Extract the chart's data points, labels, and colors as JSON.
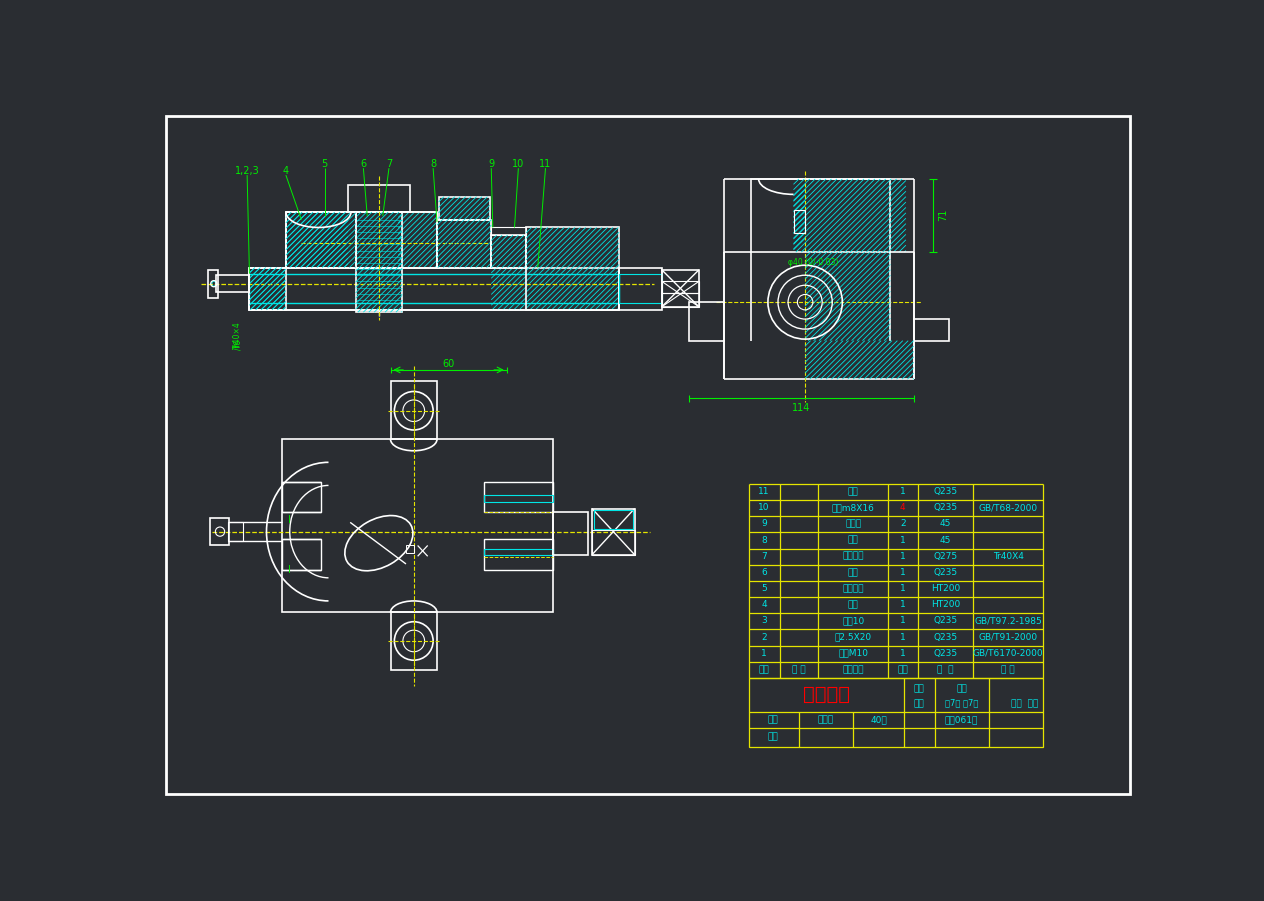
{
  "background_color": "#2a2d32",
  "wc": "#ffffff",
  "cc": "#00e5e5",
  "gc": "#00ee00",
  "yc": "#e5e500",
  "rc": "#ff0000",
  "table_rows": [
    [
      "11",
      "",
      "垫圈",
      "1",
      "Q235",
      ""
    ],
    [
      "10",
      "",
      "螺钉m8X16",
      "4",
      "Q235",
      "GB/T68-2000"
    ],
    [
      "9",
      "",
      "护口板",
      "2",
      "45",
      ""
    ],
    [
      "8",
      "",
      "攀杆",
      "1",
      "45",
      ""
    ],
    [
      "7",
      "",
      "方块螺母",
      "1",
      "Q275",
      "Tr40X4"
    ],
    [
      "6",
      "",
      "螺钉",
      "1",
      "Q235",
      ""
    ],
    [
      "5",
      "",
      "活动钳块",
      "1",
      "HT200",
      ""
    ],
    [
      "4",
      "",
      "销座",
      "1",
      "HT200",
      ""
    ],
    [
      "3",
      "",
      "垫圈10",
      "1",
      "Q235",
      "GB/T97.2-1985"
    ],
    [
      "2",
      "",
      "销2.5X20",
      "1",
      "Q235",
      "GB/T91-2000"
    ],
    [
      "1",
      "",
      "螺母M10",
      "1",
      "Q235",
      "GB/T6170-2000"
    ]
  ],
  "table_headers": [
    "序号",
    "代 号",
    "零件名称",
    "数量",
    "材  料",
    "备 注"
  ]
}
